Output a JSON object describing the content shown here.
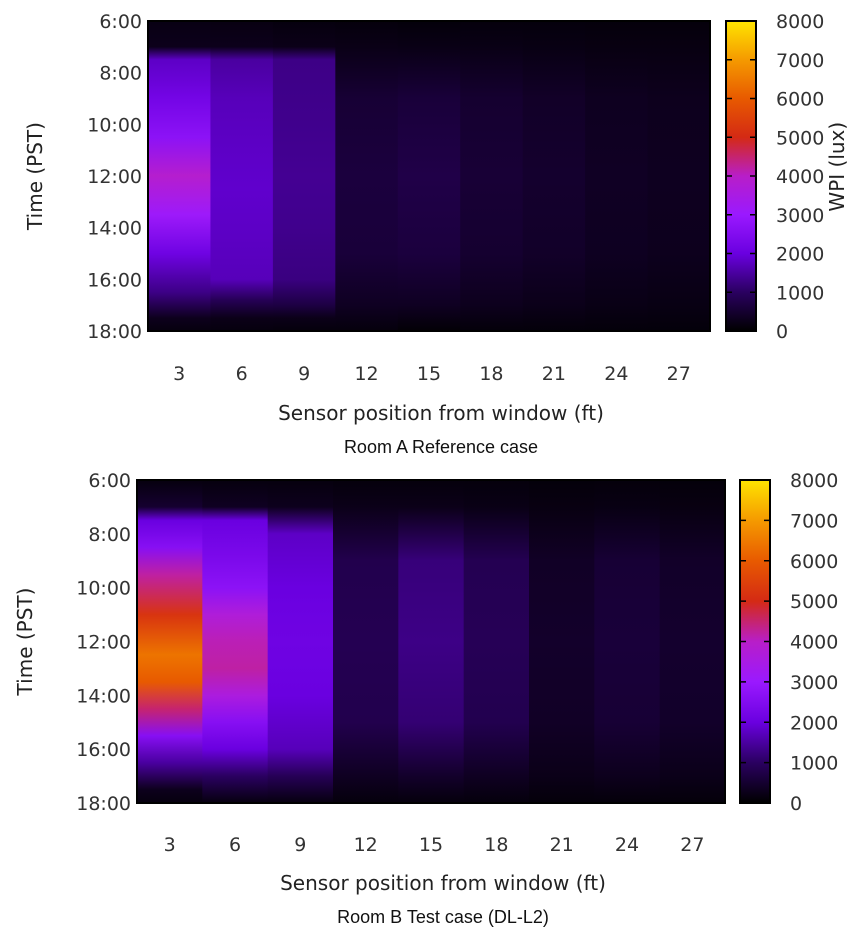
{
  "chart_data": [
    {
      "type": "heatmap",
      "title": "Room A Reference case",
      "xlabel": "Sensor position from window (ft)",
      "ylabel": "Time (PST)",
      "colorbar_label": "WPI (lux)",
      "x": [
        3,
        6,
        9,
        12,
        15,
        18,
        21,
        24,
        27
      ],
      "y_ticks": [
        "6:00",
        "8:00",
        "10:00",
        "12:00",
        "14:00",
        "16:00",
        "18:00"
      ],
      "y_range_hours": [
        6,
        18
      ],
      "color_range": [
        0,
        8000
      ],
      "colorbar_ticks": [
        0,
        1000,
        2000,
        3000,
        4000,
        5000,
        6000,
        7000,
        8000
      ],
      "colormap": [
        "#000000",
        "#2a0060",
        "#6a00e0",
        "#9a19ff",
        "#b81ec8",
        "#d42a14",
        "#e85a00",
        "#f59a00",
        "#ffe400"
      ],
      "value_profiles": [
        [
          [
            6,
            200
          ],
          [
            7,
            280
          ],
          [
            7.5,
            1800
          ],
          [
            9,
            2200
          ],
          [
            10.5,
            2700
          ],
          [
            12,
            3900
          ],
          [
            13.5,
            3100
          ],
          [
            15,
            2100
          ],
          [
            16.5,
            1300
          ],
          [
            17.5,
            300
          ],
          [
            18,
            150
          ]
        ],
        [
          [
            6,
            180
          ],
          [
            7,
            280
          ],
          [
            7.5,
            1500
          ],
          [
            9,
            1700
          ],
          [
            11,
            1800
          ],
          [
            12.5,
            1850
          ],
          [
            14,
            1800
          ],
          [
            16,
            1700
          ],
          [
            16.8,
            900
          ],
          [
            17.5,
            250
          ],
          [
            18,
            150
          ]
        ],
        [
          [
            6,
            150
          ],
          [
            7,
            250
          ],
          [
            7.5,
            1300
          ],
          [
            10,
            1350
          ],
          [
            12,
            1400
          ],
          [
            14,
            1350
          ],
          [
            16,
            1250
          ],
          [
            17,
            700
          ],
          [
            17.5,
            250
          ],
          [
            18,
            120
          ]
        ],
        [
          [
            6,
            130
          ],
          [
            7,
            230
          ],
          [
            9,
            550
          ],
          [
            12,
            650
          ],
          [
            15,
            600
          ],
          [
            17,
            350
          ],
          [
            18,
            120
          ]
        ],
        [
          [
            6,
            100
          ],
          [
            7,
            220
          ],
          [
            9,
            600
          ],
          [
            12,
            750
          ],
          [
            15,
            650
          ],
          [
            17,
            350
          ],
          [
            18,
            60
          ]
        ],
        [
          [
            6,
            120
          ],
          [
            7,
            220
          ],
          [
            9,
            500
          ],
          [
            12,
            560
          ],
          [
            15,
            500
          ],
          [
            17,
            300
          ],
          [
            18,
            100
          ]
        ],
        [
          [
            6,
            120
          ],
          [
            7,
            200
          ],
          [
            9,
            420
          ],
          [
            12,
            480
          ],
          [
            15,
            430
          ],
          [
            17,
            260
          ],
          [
            18,
            100
          ]
        ],
        [
          [
            6,
            110
          ],
          [
            7,
            180
          ],
          [
            9,
            330
          ],
          [
            12,
            380
          ],
          [
            15,
            340
          ],
          [
            17,
            220
          ],
          [
            18,
            100
          ]
        ],
        [
          [
            6,
            110
          ],
          [
            7,
            180
          ],
          [
            9,
            300
          ],
          [
            12,
            330
          ],
          [
            15,
            300
          ],
          [
            17,
            200
          ],
          [
            18,
            100
          ]
        ]
      ]
    },
    {
      "type": "heatmap",
      "title": "Room B Test case (DL-L2)",
      "xlabel": "Sensor position from window (ft)",
      "ylabel": "Time (PST)",
      "x": [
        3,
        6,
        9,
        12,
        15,
        18,
        21,
        24,
        27
      ],
      "y_ticks": [
        "6:00",
        "8:00",
        "10:00",
        "12:00",
        "14:00",
        "16:00",
        "18:00"
      ],
      "y_range_hours": [
        6,
        18
      ],
      "color_range": [
        0,
        8000
      ],
      "colorbar_ticks": [
        0,
        1000,
        2000,
        3000,
        4000,
        5000,
        6000,
        7000,
        8000
      ],
      "colormap": [
        "#000000",
        "#2a0060",
        "#6a00e0",
        "#9a19ff",
        "#b81ec8",
        "#d42a14",
        "#e85a00",
        "#f59a00",
        "#ffe400"
      ],
      "value_profiles": [
        [
          [
            6,
            150
          ],
          [
            7,
            500
          ],
          [
            7.5,
            2000
          ],
          [
            8.5,
            2600
          ],
          [
            9.5,
            4200
          ],
          [
            11,
            5200
          ],
          [
            12.5,
            6400
          ],
          [
            13.5,
            6000
          ],
          [
            14.5,
            4500
          ],
          [
            15.5,
            2600
          ],
          [
            16.5,
            1500
          ],
          [
            17.5,
            300
          ],
          [
            18,
            150
          ]
        ],
        [
          [
            6,
            150
          ],
          [
            7,
            350
          ],
          [
            7.5,
            2000
          ],
          [
            9,
            2400
          ],
          [
            10,
            2700
          ],
          [
            11,
            3700
          ],
          [
            12,
            4100
          ],
          [
            13,
            4200
          ],
          [
            14,
            3600
          ],
          [
            15,
            2600
          ],
          [
            16,
            2000
          ],
          [
            17,
            1000
          ],
          [
            18,
            150
          ]
        ],
        [
          [
            6,
            150
          ],
          [
            7,
            300
          ],
          [
            8,
            1800
          ],
          [
            10,
            2000
          ],
          [
            12,
            2100
          ],
          [
            14,
            2000
          ],
          [
            16,
            1700
          ],
          [
            17,
            900
          ],
          [
            18,
            150
          ]
        ],
        [
          [
            6,
            130
          ],
          [
            7,
            250
          ],
          [
            9,
            800
          ],
          [
            12,
            850
          ],
          [
            15,
            800
          ],
          [
            17,
            350
          ],
          [
            18,
            120
          ]
        ],
        [
          [
            6,
            130
          ],
          [
            7,
            250
          ],
          [
            9,
            1200
          ],
          [
            12,
            1300
          ],
          [
            15,
            1150
          ],
          [
            17,
            450
          ],
          [
            18,
            120
          ]
        ],
        [
          [
            6,
            120
          ],
          [
            7,
            220
          ],
          [
            9,
            850
          ],
          [
            12,
            900
          ],
          [
            15,
            820
          ],
          [
            17,
            350
          ],
          [
            18,
            120
          ]
        ],
        [
          [
            6,
            100
          ],
          [
            7,
            180
          ],
          [
            9,
            400
          ],
          [
            12,
            450
          ],
          [
            15,
            400
          ],
          [
            17,
            250
          ],
          [
            18,
            100
          ]
        ],
        [
          [
            6,
            110
          ],
          [
            7,
            200
          ],
          [
            9,
            550
          ],
          [
            12,
            600
          ],
          [
            15,
            550
          ],
          [
            17,
            300
          ],
          [
            18,
            100
          ]
        ],
        [
          [
            6,
            100
          ],
          [
            7,
            180
          ],
          [
            9,
            430
          ],
          [
            12,
            480
          ],
          [
            15,
            440
          ],
          [
            17,
            260
          ],
          [
            18,
            100
          ]
        ]
      ]
    }
  ]
}
